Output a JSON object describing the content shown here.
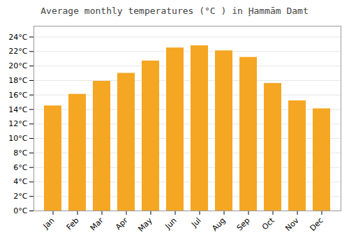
{
  "chart_data": {
    "type": "bar",
    "title": "Average monthly temperatures (°C ) in Ḩammām Damt",
    "categories": [
      "Jan",
      "Feb",
      "Mar",
      "Apr",
      "May",
      "Jun",
      "Jul",
      "Aug",
      "Sep",
      "Oct",
      "Nov",
      "Dec"
    ],
    "values": [
      14.5,
      16.1,
      17.9,
      19.0,
      20.7,
      22.5,
      22.8,
      22.1,
      21.2,
      17.6,
      15.2,
      14.1
    ],
    "color": "#F5A623",
    "ylim": [
      0,
      25.5
    ],
    "yticks": [
      {
        "value": 0,
        "label": "0°C"
      },
      {
        "value": 2,
        "label": "2°C"
      },
      {
        "value": 4,
        "label": "4°C"
      },
      {
        "value": 6,
        "label": "6°C"
      },
      {
        "value": 8,
        "label": "8°C"
      },
      {
        "value": 10,
        "label": "10°C"
      },
      {
        "value": 12,
        "label": "12°C"
      },
      {
        "value": 14,
        "label": "14°C"
      },
      {
        "value": 16,
        "label": "16°C"
      },
      {
        "value": 18,
        "label": "18°C"
      },
      {
        "value": 20,
        "label": "20°C"
      },
      {
        "value": 22,
        "label": "22°C"
      },
      {
        "value": 24,
        "label": "24°C"
      }
    ],
    "grid": true
  }
}
